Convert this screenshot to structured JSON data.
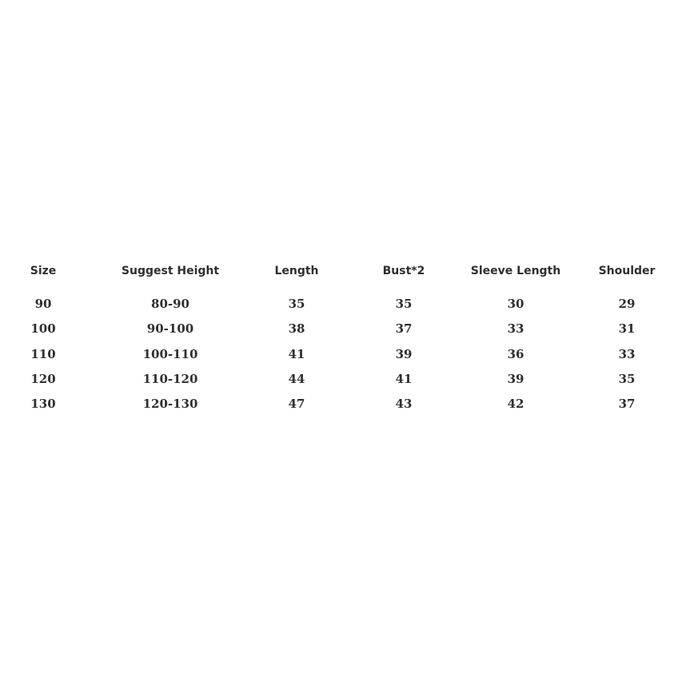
{
  "table": {
    "headers": [
      "Size",
      "Suggest Height",
      "Length",
      "Bust*2",
      "Sleeve Length",
      "Shoulder"
    ],
    "rows": [
      [
        "90",
        "80-90",
        "35",
        "35",
        "30",
        "29"
      ],
      [
        "100",
        "90-100",
        "38",
        "37",
        "33",
        "31"
      ],
      [
        "110",
        "100-110",
        "41",
        "39",
        "36",
        "33"
      ],
      [
        "120",
        "110-120",
        "44",
        "41",
        "39",
        "35"
      ],
      [
        "130",
        "120-130",
        "47",
        "43",
        "42",
        "37"
      ]
    ]
  }
}
